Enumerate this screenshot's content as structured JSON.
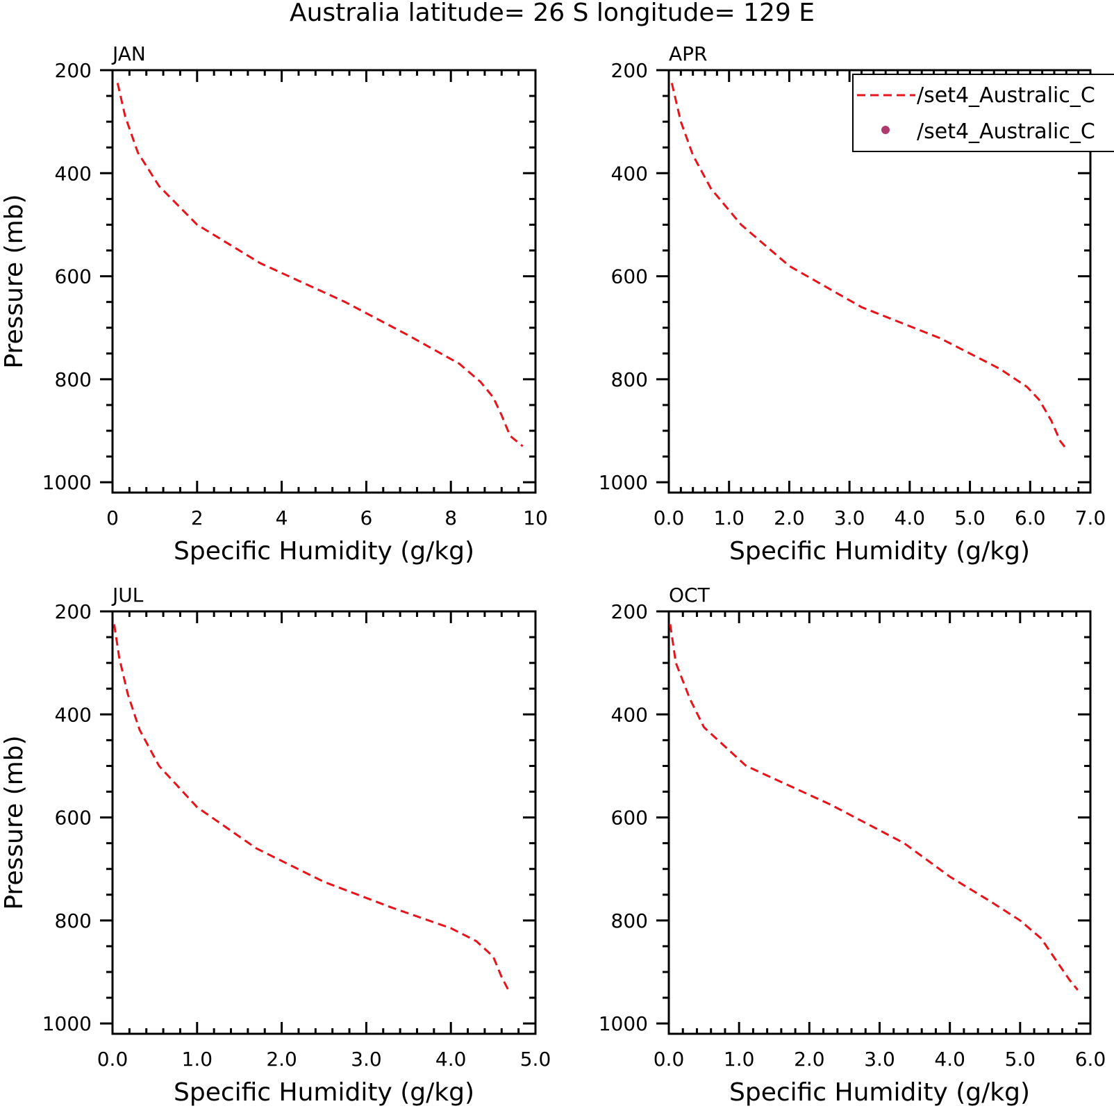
{
  "figure": {
    "title": "Australia  latitude= 26 S longitude= 129 E"
  },
  "legend": {
    "position": "top-right",
    "entries": [
      {
        "label": "/set4_Australic_C",
        "style": "dashed-line",
        "color": "#e8141b"
      },
      {
        "label": "/set4_Australic_C",
        "style": "dot",
        "color": "#b03a6e"
      }
    ]
  },
  "chart_data": [
    {
      "type": "line",
      "panel_label": "JAN",
      "xlabel": "Specific Humidity (g/kg)",
      "ylabel": "Pressure (mb)",
      "xlim": [
        0,
        10
      ],
      "ylim": [
        200,
        1020
      ],
      "y_inverted": true,
      "x_ticks": [
        "0",
        "2",
        "4",
        "6",
        "8",
        "10"
      ],
      "x_tick_values": [
        0,
        2,
        4,
        6,
        8,
        10
      ],
      "y_ticks": [
        "200",
        "400",
        "600",
        "800",
        "1000"
      ],
      "y_tick_values": [
        200,
        400,
        600,
        800,
        1000
      ],
      "series": [
        {
          "color": "#e8141b",
          "style": "dashed",
          "points": [
            [
              0.12,
              225
            ],
            [
              0.3,
              290
            ],
            [
              0.6,
              360
            ],
            [
              1.1,
              425
            ],
            [
              2.0,
              500
            ],
            [
              3.5,
              575
            ],
            [
              5.5,
              650
            ],
            [
              7.0,
              715
            ],
            [
              8.2,
              770
            ],
            [
              8.7,
              805
            ],
            [
              9.0,
              835
            ],
            [
              9.2,
              870
            ],
            [
              9.4,
              910
            ],
            [
              9.7,
              930
            ]
          ]
        }
      ]
    },
    {
      "type": "line",
      "panel_label": "APR",
      "xlabel": "Specific Humidity (g/kg)",
      "ylabel": "",
      "xlim": [
        0,
        7
      ],
      "ylim": [
        200,
        1020
      ],
      "y_inverted": true,
      "x_ticks": [
        "0.0",
        "1.0",
        "2.0",
        "3.0",
        "4.0",
        "5.0",
        "6.0",
        "7.0"
      ],
      "x_tick_values": [
        0,
        1,
        2,
        3,
        4,
        5,
        6,
        7
      ],
      "y_ticks": [
        "200",
        "400",
        "600",
        "800",
        "1000"
      ],
      "y_tick_values": [
        200,
        400,
        600,
        800,
        1000
      ],
      "series": [
        {
          "color": "#e8141b",
          "style": "dashed",
          "points": [
            [
              0.05,
              225
            ],
            [
              0.2,
              300
            ],
            [
              0.4,
              365
            ],
            [
              0.7,
              430
            ],
            [
              1.2,
              500
            ],
            [
              2.0,
              580
            ],
            [
              3.2,
              660
            ],
            [
              4.5,
              720
            ],
            [
              5.5,
              780
            ],
            [
              5.95,
              815
            ],
            [
              6.15,
              840
            ],
            [
              6.35,
              880
            ],
            [
              6.5,
              920
            ],
            [
              6.6,
              935
            ]
          ]
        }
      ]
    },
    {
      "type": "line",
      "panel_label": "JUL",
      "xlabel": "Specific Humidity (g/kg)",
      "ylabel": "Pressure (mb)",
      "xlim": [
        0,
        5
      ],
      "ylim": [
        200,
        1020
      ],
      "y_inverted": true,
      "x_ticks": [
        "0.0",
        "1.0",
        "2.0",
        "3.0",
        "4.0",
        "5.0"
      ],
      "x_tick_values": [
        0,
        1,
        2,
        3,
        4,
        5
      ],
      "y_ticks": [
        "200",
        "400",
        "600",
        "800",
        "1000"
      ],
      "y_tick_values": [
        200,
        400,
        600,
        800,
        1000
      ],
      "series": [
        {
          "color": "#e8141b",
          "style": "dashed",
          "points": [
            [
              0.02,
              225
            ],
            [
              0.08,
              290
            ],
            [
              0.18,
              360
            ],
            [
              0.32,
              430
            ],
            [
              0.55,
              500
            ],
            [
              1.0,
              580
            ],
            [
              1.7,
              660
            ],
            [
              2.5,
              725
            ],
            [
              3.3,
              775
            ],
            [
              4.0,
              815
            ],
            [
              4.3,
              840
            ],
            [
              4.5,
              870
            ],
            [
              4.6,
              910
            ],
            [
              4.68,
              935
            ]
          ]
        }
      ]
    },
    {
      "type": "line",
      "panel_label": "OCT",
      "xlabel": "Specific Humidity (g/kg)",
      "ylabel": "",
      "xlim": [
        0,
        6
      ],
      "ylim": [
        200,
        1020
      ],
      "y_inverted": true,
      "x_ticks": [
        "0.0",
        "1.0",
        "2.0",
        "3.0",
        "4.0",
        "5.0",
        "6.0"
      ],
      "x_tick_values": [
        0,
        1,
        2,
        3,
        4,
        5,
        6
      ],
      "y_ticks": [
        "200",
        "400",
        "600",
        "800",
        "1000"
      ],
      "y_tick_values": [
        200,
        400,
        600,
        800,
        1000
      ],
      "series": [
        {
          "color": "#e8141b",
          "style": "dashed",
          "points": [
            [
              0.02,
              225
            ],
            [
              0.1,
              300
            ],
            [
              0.3,
              370
            ],
            [
              0.5,
              425
            ],
            [
              1.1,
              500
            ],
            [
              2.3,
              575
            ],
            [
              3.35,
              650
            ],
            [
              4.0,
              715
            ],
            [
              4.6,
              765
            ],
            [
              5.0,
              800
            ],
            [
              5.3,
              835
            ],
            [
              5.5,
              875
            ],
            [
              5.7,
              915
            ],
            [
              5.82,
              935
            ]
          ]
        }
      ]
    }
  ]
}
